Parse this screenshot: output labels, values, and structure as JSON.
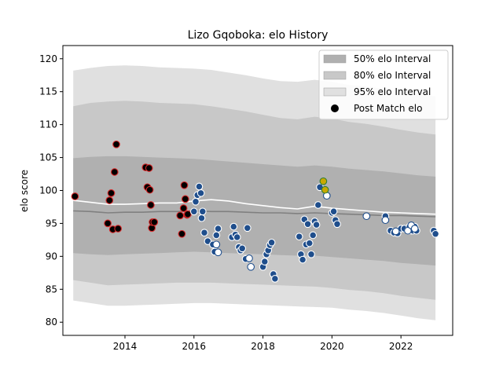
{
  "chart_data": {
    "type": "scatter",
    "title": "Lizo Gqoboka: elo History",
    "xlabel": "",
    "ylabel": "elo score",
    "xlim": [
      2012.2,
      2023.5
    ],
    "ylim": [
      78,
      122
    ],
    "x_ticks": [
      "2014",
      "2016",
      "2018",
      "2020",
      "2022"
    ],
    "x_tick_values": [
      2014,
      2016,
      2018,
      2020,
      2022
    ],
    "y_ticks": [
      "80",
      "85",
      "90",
      "95",
      "100",
      "105",
      "110",
      "115",
      "120"
    ],
    "y_tick_values": [
      80,
      85,
      90,
      95,
      100,
      105,
      110,
      115,
      120
    ],
    "grid": false,
    "legend_position": "top-right",
    "legend": [
      {
        "label": "50% elo Interval",
        "kind": "patch",
        "color": "#b0b0b0"
      },
      {
        "label": "80% elo Interval",
        "kind": "patch",
        "color": "#c8c8c8"
      },
      {
        "label": "95% elo Interval",
        "kind": "patch",
        "color": "#e0e0e0"
      },
      {
        "label": "Post Match elo",
        "kind": "marker",
        "color": "#000000"
      }
    ],
    "band_x": [
      2012.5,
      2013.0,
      2013.5,
      2014.0,
      2014.5,
      2015.0,
      2015.5,
      2016.0,
      2016.5,
      2017.0,
      2017.5,
      2018.0,
      2018.5,
      2019.0,
      2019.5,
      2020.0,
      2020.5,
      2021.0,
      2021.5,
      2022.0,
      2022.5,
      2023.0
    ],
    "bands": [
      {
        "name": "95% elo Interval",
        "color": "#e0e0e0",
        "upper": [
          118.2,
          118.6,
          118.9,
          119.0,
          118.9,
          118.7,
          118.6,
          118.5,
          118.3,
          117.9,
          117.5,
          117.0,
          116.6,
          116.5,
          116.8,
          116.5,
          116.0,
          115.8,
          115.4,
          114.9,
          114.6,
          114.3
        ],
        "lower": [
          83.3,
          82.9,
          82.5,
          82.5,
          82.6,
          82.7,
          82.8,
          82.9,
          82.9,
          82.8,
          82.7,
          82.6,
          82.5,
          82.4,
          82.3,
          82.2,
          81.9,
          81.7,
          81.4,
          81.0,
          80.6,
          80.3
        ]
      },
      {
        "name": "80% elo Interval",
        "color": "#c8c8c8",
        "upper": [
          112.8,
          113.3,
          113.5,
          113.6,
          113.5,
          113.3,
          113.2,
          113.1,
          112.8,
          112.4,
          112.0,
          111.5,
          111.0,
          110.8,
          111.2,
          110.9,
          110.4,
          110.1,
          109.7,
          109.2,
          108.8,
          108.5
        ],
        "lower": [
          86.4,
          86.0,
          85.6,
          85.7,
          85.8,
          85.9,
          86.0,
          86.0,
          86.0,
          85.9,
          85.8,
          85.7,
          85.6,
          85.5,
          85.4,
          85.2,
          84.9,
          84.7,
          84.4,
          84.0,
          83.7,
          83.4
        ]
      },
      {
        "name": "50% elo Interval",
        "color": "#b0b0b0",
        "upper": [
          104.9,
          105.1,
          105.2,
          105.2,
          105.1,
          105.0,
          104.9,
          104.8,
          104.6,
          104.4,
          104.2,
          104.0,
          103.8,
          103.6,
          103.8,
          103.6,
          103.3,
          103.1,
          102.9,
          102.6,
          102.3,
          102.1
        ],
        "lower": [
          90.5,
          90.3,
          90.2,
          90.3,
          90.4,
          90.5,
          90.6,
          90.7,
          90.6,
          90.5,
          90.4,
          90.3,
          90.2,
          90.1,
          90.1,
          89.9,
          89.7,
          89.5,
          89.3,
          89.0,
          88.8,
          88.6
        ]
      }
    ],
    "lines": [
      {
        "name": "mean",
        "color": "#ffffff",
        "x": [
          2012.5,
          2013.0,
          2013.5,
          2014.0,
          2014.5,
          2015.0,
          2015.5,
          2016.0,
          2016.5,
          2017.0,
          2017.5,
          2018.0,
          2018.5,
          2019.0,
          2019.5,
          2020.0,
          2020.5,
          2021.0,
          2021.5,
          2022.0,
          2022.5,
          2023.0
        ],
        "y": [
          98.5,
          98.2,
          97.9,
          97.9,
          98.0,
          98.1,
          98.1,
          98.4,
          98.6,
          98.4,
          98.0,
          97.7,
          97.4,
          97.2,
          97.6,
          97.3,
          97.1,
          96.9,
          96.7,
          96.6,
          96.5,
          96.4
        ]
      },
      {
        "name": "median",
        "color": "#808080",
        "x": [
          2012.5,
          2013.0,
          2013.5,
          2014.0,
          2014.5,
          2015.0,
          2015.5,
          2016.0,
          2016.5,
          2017.0,
          2017.5,
          2018.0,
          2018.5,
          2019.0,
          2019.5,
          2020.0,
          2020.5,
          2021.0,
          2021.5,
          2022.0,
          2022.5,
          2023.0
        ],
        "y": [
          96.9,
          96.8,
          96.6,
          96.7,
          96.7,
          96.8,
          96.8,
          96.9,
          96.8,
          96.8,
          96.7,
          96.6,
          96.6,
          96.5,
          96.6,
          96.5,
          96.4,
          96.3,
          96.2,
          96.2,
          96.1,
          96.0
        ]
      }
    ],
    "series": [
      {
        "name": "Post Match elo",
        "fill": "#000000",
        "edge": "#d62728",
        "x": [
          2012.55,
          2013.5,
          2013.55,
          2013.6,
          2013.65,
          2013.7,
          2013.75,
          2013.8,
          2014.6,
          2014.65,
          2014.7,
          2014.72,
          2014.75,
          2014.78,
          2014.8,
          2014.85,
          2015.6,
          2015.65,
          2015.7,
          2015.72,
          2015.75,
          2015.8,
          2015.82
        ],
        "y": [
          99.1,
          95.0,
          98.5,
          99.6,
          94.1,
          102.8,
          107.0,
          94.2,
          103.5,
          100.5,
          103.4,
          100.1,
          97.8,
          94.3,
          95.2,
          95.2,
          96.2,
          93.4,
          97.3,
          100.8,
          98.7,
          96.3,
          96.4
        ]
      },
      {
        "name": "Post Match elo",
        "fill": "#1f4e8c",
        "edge": "#ffffff",
        "x": [
          2016.0,
          2016.05,
          2016.1,
          2016.15,
          2016.2,
          2016.22,
          2016.25,
          2016.3,
          2016.4,
          2016.55,
          2016.6,
          2016.65,
          2016.7,
          2017.1,
          2017.15,
          2017.2,
          2017.25,
          2017.3,
          2017.35,
          2017.4,
          2017.5,
          2017.55,
          2018.0,
          2018.05,
          2018.1,
          2018.15,
          2018.2,
          2018.25,
          2018.3,
          2018.35,
          2019.05,
          2019.1,
          2019.15,
          2019.2,
          2019.25,
          2019.3,
          2019.35,
          2019.4,
          2019.45,
          2019.5,
          2019.55,
          2019.6,
          2019.65,
          2020.0,
          2020.05,
          2020.1,
          2020.15,
          2021.55,
          2021.7,
          2021.8,
          2021.9,
          2022.0,
          2022.1,
          2022.2,
          2022.25,
          2022.3,
          2022.35,
          2022.4,
          2022.45,
          2022.95,
          2023.0
        ],
        "y": [
          96.8,
          98.3,
          99.3,
          100.6,
          99.6,
          95.8,
          96.8,
          93.6,
          92.3,
          91.8,
          90.7,
          93.2,
          94.2,
          92.9,
          94.5,
          93.3,
          92.9,
          91.4,
          90.9,
          91.2,
          89.6,
          94.3,
          88.4,
          89.2,
          90.3,
          90.9,
          91.7,
          92.1,
          87.3,
          86.6,
          93.0,
          90.3,
          89.5,
          95.6,
          91.8,
          94.9,
          92.0,
          90.3,
          93.2,
          95.3,
          94.8,
          97.8,
          100.5,
          96.6,
          96.8,
          95.5,
          94.9,
          96.1,
          93.9,
          93.6,
          93.5,
          94.2,
          94.2,
          93.9,
          94.5,
          93.9,
          93.9,
          94.5,
          93.9,
          93.9,
          93.4
        ]
      },
      {
        "name": "Post Match elo",
        "fill": "#ffffff",
        "edge": "#1f4e8c",
        "x": [
          2016.65,
          2016.7,
          2017.6,
          2017.65,
          2019.85,
          2021.0,
          2021.55,
          2021.85,
          2022.2,
          2022.3,
          2022.4
        ],
        "y": [
          91.8,
          90.6,
          89.7,
          88.4,
          99.2,
          96.1,
          95.5,
          93.8,
          93.9,
          94.7,
          94.2
        ]
      },
      {
        "name": "Post Match elo",
        "fill": "#c8a800",
        "edge": "#2e7d32",
        "x": [
          2019.75,
          2019.8
        ],
        "y": [
          101.4,
          100.1
        ]
      }
    ]
  }
}
